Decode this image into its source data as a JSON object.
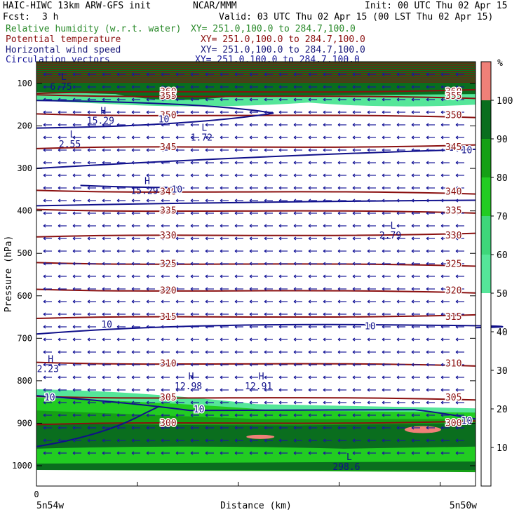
{
  "header": {
    "title_left": "HAIC-HIWC 13km ARW-GFS init",
    "org": "NCAR/MMM",
    "init": "Init: 00 UTC Thu 02 Apr 15",
    "fcst_label": "Fcst:",
    "fcst_value": "3 h",
    "valid": "Valid: 03 UTC Thu 02 Apr 15 (00 LST Thu 02 Apr 15)",
    "fields": [
      {
        "name": "Relative humidity (w.r.t. water)",
        "xy": "XY= 251.0,100.0 to 284.7,100.0",
        "color": "#2a8a2a"
      },
      {
        "name": "Potential temperature",
        "xy": "XY= 251.0,100.0 to 284.7,100.0",
        "color": "#8b1010"
      },
      {
        "name": "Horizontal wind speed",
        "xy": "XY= 251.0,100.0 to 284.7,100.0",
        "color": "#1a1a7a"
      },
      {
        "name": "Circulation vectors",
        "xy": "XY= 251.0,100.0 to 284.7,100.0",
        "color": "#1a1a9a"
      }
    ]
  },
  "colors": {
    "theta": "#8b1010",
    "wind": "#10108a",
    "rh_text": "#2a8a2a",
    "vectors": "#1a1a9a"
  },
  "chart_data": {
    "type": "cross-section",
    "ylabel": "Pressure (hPa)",
    "xlabel": "Distance (km)",
    "x_left_label": "5n54w",
    "x_right_label": "5n50w",
    "x_zero_label": "0",
    "pressure_ticks": [
      100,
      200,
      300,
      400,
      500,
      600,
      700,
      800,
      900,
      1000
    ],
    "ylim": [
      1050,
      55
    ],
    "colorbar": {
      "unit": "%",
      "labels": [
        10,
        20,
        30,
        40,
        50,
        60,
        70,
        80,
        90,
        100
      ],
      "bins": [
        {
          "from": 0,
          "to": 50,
          "color": "#ffffff"
        },
        {
          "from": 50,
          "to": 60,
          "color": "#55e699"
        },
        {
          "from": 60,
          "to": 70,
          "color": "#3ed77a"
        },
        {
          "from": 70,
          "to": 80,
          "color": "#22cc22"
        },
        {
          "from": 80,
          "to": 90,
          "color": "#15a015"
        },
        {
          "from": 90,
          "to": 100,
          "color": "#0a6e1e"
        },
        {
          "from": 100,
          "to": 110,
          "color": "#f08078"
        }
      ]
    },
    "theta_contours": [
      {
        "value": 360,
        "pressure": 120,
        "label": "360"
      },
      {
        "value": 355,
        "pressure": 130,
        "label": "355"
      },
      {
        "value": 350,
        "pressure": 175,
        "label": "350"
      },
      {
        "value": 345,
        "pressure": 250,
        "label": "345"
      },
      {
        "value": 340,
        "pressure": 355,
        "label": "340"
      },
      {
        "value": 335,
        "pressure": 400,
        "label": "335"
      },
      {
        "value": 330,
        "pressure": 458,
        "label": "330"
      },
      {
        "value": 325,
        "pressure": 525,
        "label": "325"
      },
      {
        "value": 320,
        "pressure": 588,
        "label": "320"
      },
      {
        "value": 315,
        "pressure": 650,
        "label": "315"
      },
      {
        "value": 310,
        "pressure": 760,
        "label": "310"
      },
      {
        "value": 305,
        "pressure": 840,
        "label": "305"
      },
      {
        "value": 300,
        "pressure": 900,
        "label": "300"
      }
    ],
    "wind_contour_label": "10",
    "extrema": [
      {
        "kind": "H",
        "value": "15.29",
        "x": 0.13,
        "pressure": 185
      },
      {
        "kind": "L",
        "value": "1.72",
        "x": 0.36,
        "pressure": 225
      },
      {
        "kind": "L",
        "value": "2.55",
        "x": 0.06,
        "pressure": 240
      },
      {
        "kind": "H",
        "value": "15.29",
        "x": 0.23,
        "pressure": 350
      },
      {
        "kind": "L",
        "value": "2.79",
        "x": 0.79,
        "pressure": 455
      },
      {
        "kind": "H",
        "value": "2.23",
        "x": 0.01,
        "pressure": 770
      },
      {
        "kind": "H",
        "value": "12.98",
        "x": 0.33,
        "pressure": 810
      },
      {
        "kind": "H",
        "value": "12.91",
        "x": 0.49,
        "pressure": 810
      },
      {
        "kind": "L",
        "value": "298.6",
        "x": 0.69,
        "pressure": 1000
      },
      {
        "kind": "L",
        "value": "6.75",
        "x": 0.04,
        "pressure": 105
      }
    ]
  }
}
